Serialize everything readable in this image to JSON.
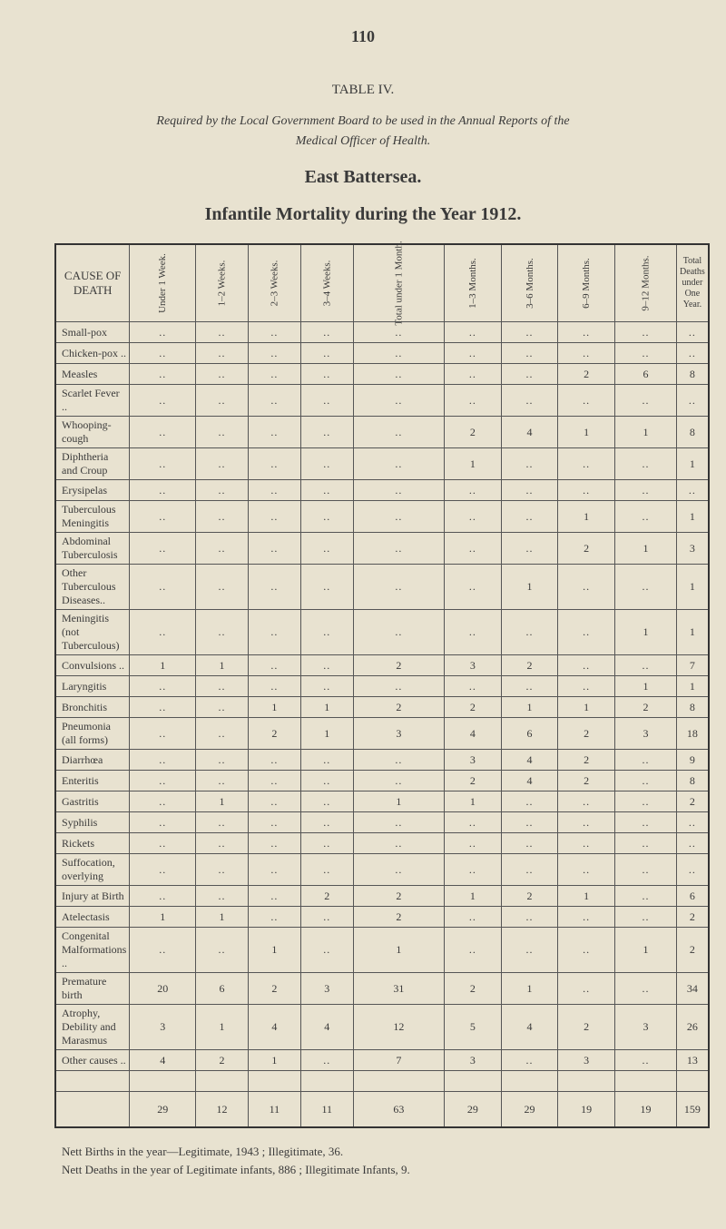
{
  "page_number": "110",
  "table_label": "TABLE IV.",
  "requirement_line1": "Required by the Local Government Board to be used in the Annual Reports of the",
  "requirement_line2": "Medical Officer of Health.",
  "area_title": "East Battersea.",
  "main_title": "Infantile Mortality during the Year 1912.",
  "headers": {
    "cause": "CAUSE OF DEATH",
    "cols": [
      "Under\n1 Week.",
      "1–2\nWeeks.",
      "2–3\nWeeks.",
      "3–4\nWeeks.",
      "Total\nunder\n1 Month.",
      "1–3\nMonths.",
      "3–6\nMonths.",
      "6–9\nMonths.",
      "9–12\nMonths."
    ],
    "total_col": "Total Deaths under One Year."
  },
  "rows": [
    {
      "cause": "Small-pox",
      "v": [
        "..",
        "..",
        "..",
        "..",
        "..",
        "..",
        "..",
        "..",
        "..",
        ".."
      ]
    },
    {
      "cause": "Chicken-pox ..",
      "v": [
        "..",
        "..",
        "..",
        "..",
        "..",
        "..",
        "..",
        "..",
        "..",
        ".."
      ]
    },
    {
      "cause": "Measles",
      "v": [
        "..",
        "..",
        "..",
        "..",
        "..",
        "..",
        "..",
        "2",
        "6",
        "8"
      ]
    },
    {
      "cause": "Scarlet Fever ..",
      "v": [
        "..",
        "..",
        "..",
        "..",
        "..",
        "..",
        "..",
        "..",
        "..",
        ".."
      ]
    },
    {
      "cause": "Whooping-cough",
      "v": [
        "..",
        "..",
        "..",
        "..",
        "..",
        "2",
        "4",
        "1",
        "1",
        "8"
      ]
    },
    {
      "cause": "Diphtheria and Croup",
      "v": [
        "..",
        "..",
        "..",
        "..",
        "..",
        "1",
        "..",
        "..",
        "..",
        "1"
      ]
    },
    {
      "cause": "Erysipelas",
      "v": [
        "..",
        "..",
        "..",
        "..",
        "..",
        "..",
        "..",
        "..",
        "..",
        ".."
      ]
    },
    {
      "cause": "Tuberculous Meningitis",
      "v": [
        "..",
        "..",
        "..",
        "..",
        "..",
        "..",
        "..",
        "1",
        "..",
        "1"
      ]
    },
    {
      "cause": "Abdominal Tuberculosis",
      "v": [
        "..",
        "..",
        "..",
        "..",
        "..",
        "..",
        "..",
        "2",
        "1",
        "3"
      ]
    },
    {
      "cause": "Other Tuberculous Diseases..",
      "v": [
        "..",
        "..",
        "..",
        "..",
        "..",
        "..",
        "1",
        "..",
        "..",
        "1"
      ]
    },
    {
      "cause": "Meningitis (not Tuberculous)",
      "v": [
        "..",
        "..",
        "..",
        "..",
        "..",
        "..",
        "..",
        "..",
        "1",
        "1"
      ]
    },
    {
      "cause": "Convulsions ..",
      "v": [
        "1",
        "1",
        "..",
        "..",
        "2",
        "3",
        "2",
        "..",
        "..",
        "7"
      ]
    },
    {
      "cause": "Laryngitis",
      "v": [
        "..",
        "..",
        "..",
        "..",
        "..",
        "..",
        "..",
        "..",
        "1",
        "1"
      ]
    },
    {
      "cause": "Bronchitis",
      "v": [
        "..",
        "..",
        "1",
        "1",
        "2",
        "2",
        "1",
        "1",
        "2",
        "8"
      ]
    },
    {
      "cause": "Pneumonia (all forms)",
      "v": [
        "..",
        "..",
        "2",
        "1",
        "3",
        "4",
        "6",
        "2",
        "3",
        "18"
      ]
    },
    {
      "cause": "Diarrhœa",
      "v": [
        "..",
        "..",
        "..",
        "..",
        "..",
        "3",
        "4",
        "2",
        "..",
        "9"
      ]
    },
    {
      "cause": "Enteritis",
      "v": [
        "..",
        "..",
        "..",
        "..",
        "..",
        "2",
        "4",
        "2",
        "..",
        "8"
      ]
    },
    {
      "cause": "Gastritis",
      "v": [
        "..",
        "1",
        "..",
        "..",
        "1",
        "1",
        "..",
        "..",
        "..",
        "2"
      ]
    },
    {
      "cause": "Syphilis",
      "v": [
        "..",
        "..",
        "..",
        "..",
        "..",
        "..",
        "..",
        "..",
        "..",
        ".."
      ]
    },
    {
      "cause": "Rickets",
      "v": [
        "..",
        "..",
        "..",
        "..",
        "..",
        "..",
        "..",
        "..",
        "..",
        ".."
      ]
    },
    {
      "cause": "Suffocation, overlying",
      "v": [
        "..",
        "..",
        "..",
        "..",
        "..",
        "..",
        "..",
        "..",
        "..",
        ".."
      ]
    },
    {
      "cause": "Injury at Birth",
      "v": [
        "..",
        "..",
        "..",
        "2",
        "2",
        "1",
        "2",
        "1",
        "..",
        "6"
      ]
    },
    {
      "cause": "Atelectasis",
      "v": [
        "1",
        "1",
        "..",
        "..",
        "2",
        "..",
        "..",
        "..",
        "..",
        "2"
      ]
    },
    {
      "cause": "Congenital Malformations ..",
      "v": [
        "..",
        "..",
        "1",
        "..",
        "1",
        "..",
        "..",
        "..",
        "1",
        "2"
      ]
    },
    {
      "cause": "Premature birth",
      "v": [
        "20",
        "6",
        "2",
        "3",
        "31",
        "2",
        "1",
        "..",
        "..",
        "34"
      ]
    },
    {
      "cause": "Atrophy, Debility and Marasmus",
      "v": [
        "3",
        "1",
        "4",
        "4",
        "12",
        "5",
        "4",
        "2",
        "3",
        "26"
      ]
    },
    {
      "cause": "Other causes ..",
      "v": [
        "4",
        "2",
        "1",
        "..",
        "7",
        "3",
        "..",
        "3",
        "..",
        "13"
      ]
    }
  ],
  "totals": [
    "29",
    "12",
    "11",
    "11",
    "63",
    "29",
    "29",
    "19",
    "19",
    "159"
  ],
  "footnote1": "Nett Births in the year—Legitimate, 1943 ; Illegitimate, 36.",
  "footnote2": "Nett Deaths in the year of Legitimate infants, 886 ; Illegitimate Infants, 9.",
  "colors": {
    "page_bg": "#e8e2d0",
    "text": "#3a3a3a",
    "border": "#333333"
  }
}
